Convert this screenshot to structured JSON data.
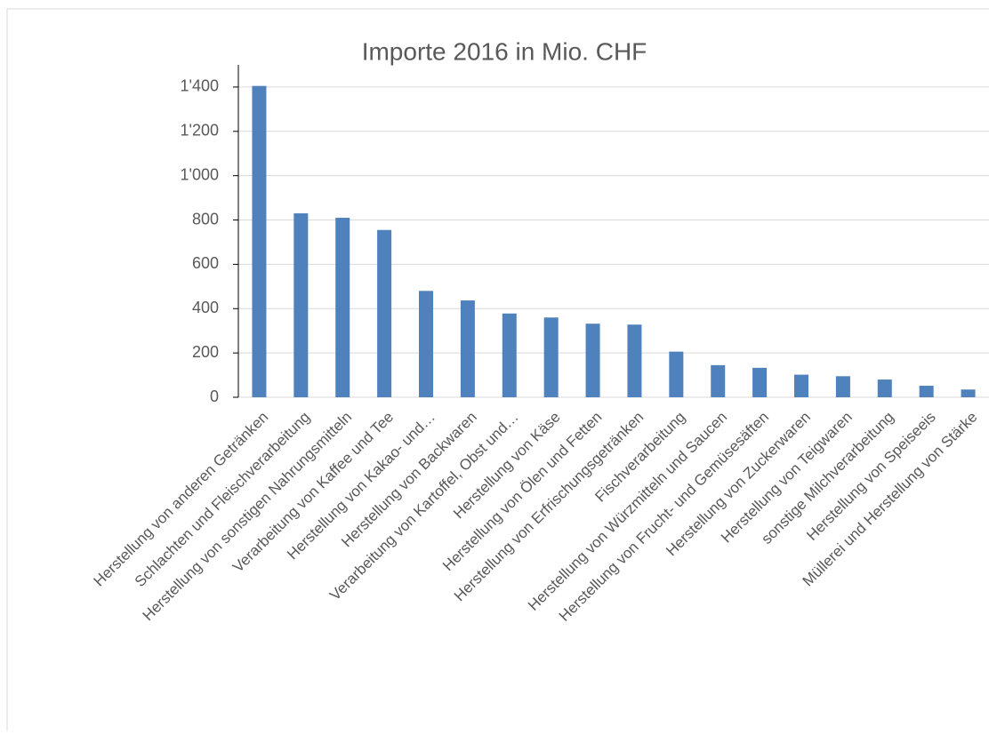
{
  "chart_data": {
    "type": "bar",
    "title": "Importe 2016 in Mio. CHF",
    "categories": [
      "Herstellung von anderen Getränken",
      "Schlachten und Fleischverarbeitung",
      "Herstellung von sonstigen Nahrungsmitteln",
      "Verarbeitung von Kaffee und Tee",
      "Herstellung von Kakao- und…",
      "Herstellung von Backwaren",
      "Verarbeitung von Kartoffel, Obst und…",
      "Herstellung von Käse",
      "Herstellung von Ölen und Fetten",
      "Herstellung von Erfrischungsgetränken",
      "Fischverarbeitung",
      "Herstellung von Würzmitteln und Saucen",
      "Herstellung von Frucht- und Gemüsesäften",
      "Herstellung von Zuckerwaren",
      "Herstellung von Teigwaren",
      "sonstige Milchverarbeitung",
      "Herstellung von Speiseeis",
      "Müllerei und Herstellung von Stärke"
    ],
    "values": [
      1405,
      830,
      810,
      755,
      480,
      437,
      378,
      360,
      332,
      328,
      206,
      145,
      133,
      102,
      95,
      80,
      52,
      35
    ],
    "color": "#4f81bd",
    "ylim": [
      0,
      1500
    ],
    "yticks": [
      0,
      200,
      400,
      600,
      800,
      {
        "value": 1000,
        "label": "1'000"
      },
      {
        "value": 1200,
        "label": "1'200"
      },
      {
        "value": 1400,
        "label": "1'400"
      }
    ],
    "grid": true
  }
}
